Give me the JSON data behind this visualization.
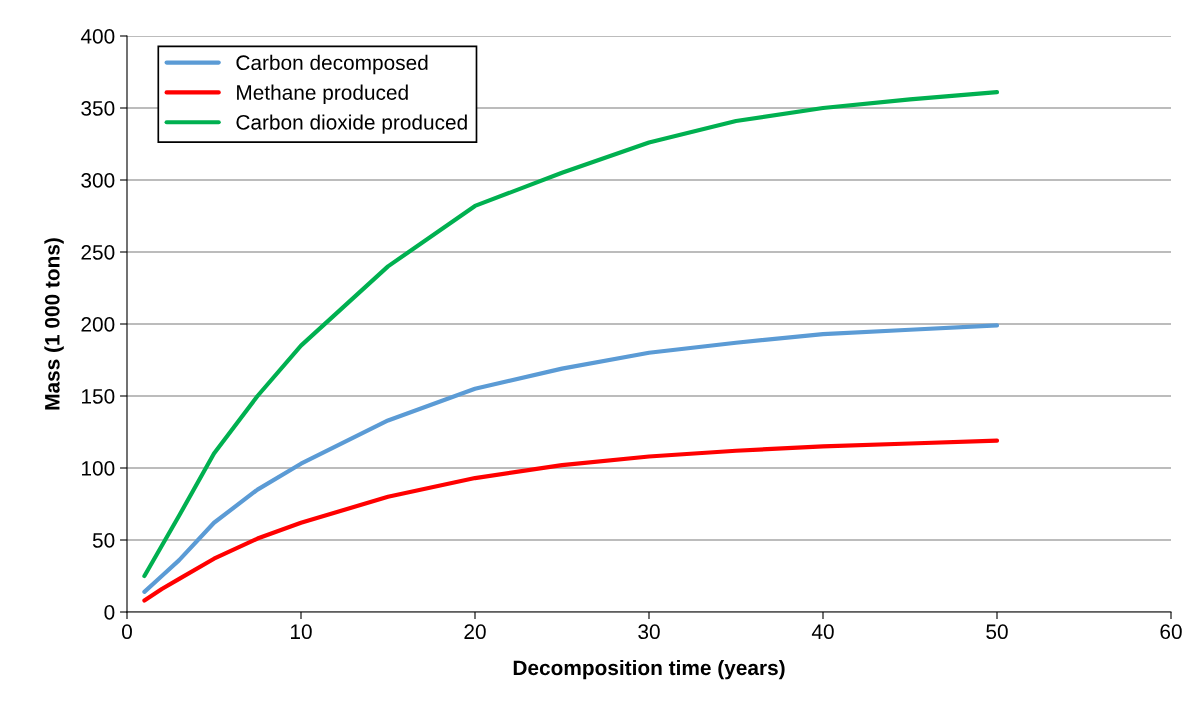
{
  "chart_data": {
    "type": "line",
    "xlabel": "Decomposition time (years)",
    "ylabel": "Mass (1 000 tons)",
    "x": [
      1,
      2,
      3,
      5,
      7.5,
      10,
      15,
      20,
      25,
      30,
      35,
      40,
      45,
      50
    ],
    "series": [
      {
        "name": "Carbon decomposed",
        "color": "#5b9bd5",
        "values": [
          14,
          25,
          36,
          62,
          85,
          103,
          133,
          155,
          169,
          180,
          187,
          193,
          196,
          199
        ]
      },
      {
        "name": "Methane produced",
        "color": "#ff0000",
        "values": [
          8,
          16,
          23,
          37,
          51,
          62,
          80,
          93,
          102,
          108,
          112,
          115,
          117,
          119
        ]
      },
      {
        "name": "Carbon dioxide produced",
        "color": "#00b050",
        "values": [
          25,
          46,
          67,
          110,
          150,
          185,
          240,
          282,
          305,
          326,
          341,
          350,
          356,
          361
        ]
      }
    ],
    "xlim": [
      0,
      60
    ],
    "xticks": [
      0,
      10,
      20,
      30,
      40,
      50,
      60
    ],
    "ylim": [
      0,
      400
    ],
    "yticks": [
      0,
      50,
      100,
      150,
      200,
      250,
      300,
      350,
      400
    ],
    "grid": "y",
    "legend": "top left",
    "marker": "none",
    "line_style": "solid"
  }
}
